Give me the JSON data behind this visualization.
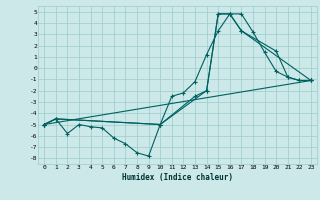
{
  "title": "",
  "xlabel": "Humidex (Indice chaleur)",
  "bg_color": "#cce8e8",
  "grid_color": "#99cccc",
  "line_color": "#006060",
  "xlim": [
    -0.5,
    23.5
  ],
  "ylim": [
    -8.5,
    5.5
  ],
  "xticks": [
    0,
    1,
    2,
    3,
    4,
    5,
    6,
    7,
    8,
    9,
    10,
    11,
    12,
    13,
    14,
    15,
    16,
    17,
    18,
    19,
    20,
    21,
    22,
    23
  ],
  "yticks": [
    -8,
    -7,
    -6,
    -5,
    -4,
    -3,
    -2,
    -1,
    0,
    1,
    2,
    3,
    4,
    5
  ],
  "line1_x": [
    0,
    1,
    2,
    3,
    4,
    5,
    6,
    7,
    8,
    9,
    10,
    11,
    12,
    13,
    14,
    15,
    16,
    17,
    18,
    19,
    20,
    21,
    22,
    23
  ],
  "line1_y": [
    -5.0,
    -4.5,
    -5.8,
    -5.0,
    -5.2,
    -5.3,
    -6.2,
    -6.7,
    -7.5,
    -7.8,
    -5.0,
    -2.5,
    -2.2,
    -1.2,
    1.2,
    3.3,
    4.8,
    4.8,
    3.2,
    1.4,
    -0.3,
    -0.8,
    -1.1,
    -1.1
  ],
  "line2_x": [
    0,
    1,
    10,
    13,
    14,
    15,
    16,
    17,
    20,
    21,
    22,
    23
  ],
  "line2_y": [
    -5.0,
    -4.5,
    -5.0,
    -2.5,
    -2.0,
    4.8,
    4.8,
    3.3,
    1.5,
    -0.8,
    -1.1,
    -1.1
  ],
  "line3_x": [
    0,
    1,
    10,
    14,
    15,
    16,
    17,
    23
  ],
  "line3_y": [
    -5.0,
    -4.5,
    -5.0,
    -2.0,
    4.8,
    4.8,
    3.3,
    -1.1
  ],
  "line4_x": [
    0,
    23
  ],
  "line4_y": [
    -5.0,
    -1.1
  ]
}
